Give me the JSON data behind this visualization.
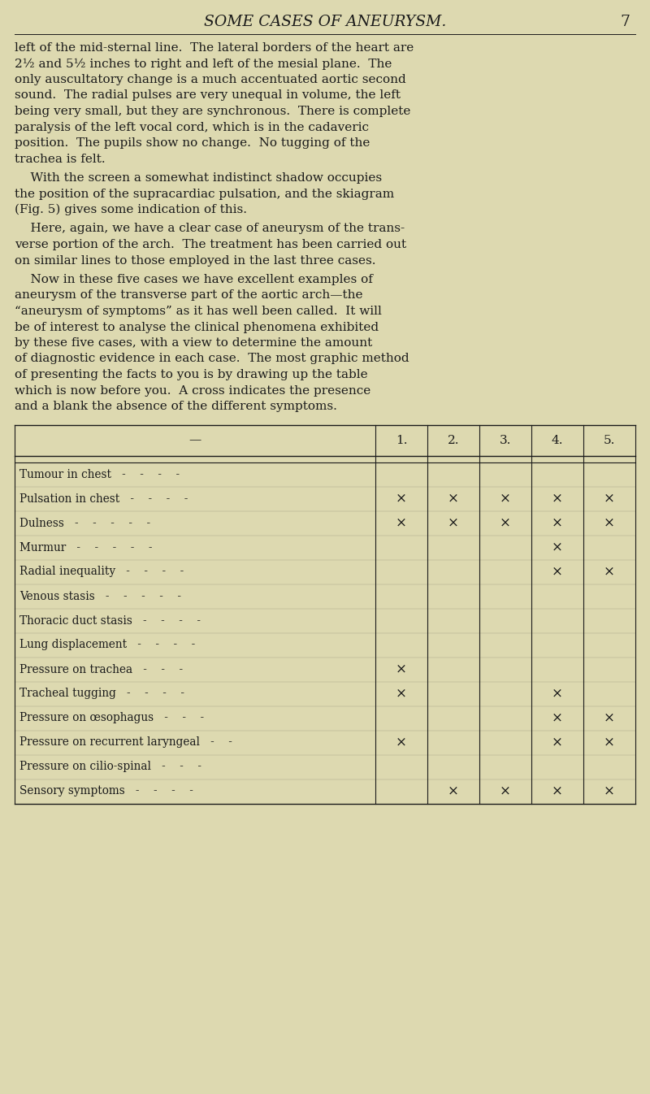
{
  "bg_color": "#ddd9b0",
  "title": "SOME CASES OF ANEURYSM.",
  "page_num": "7",
  "title_fontsize": 13.5,
  "body_fontsize": 11.0,
  "small_fontsize": 9.8,
  "text_color": "#1a1a1a",
  "table_rows": [
    {
      "label": "Tumour in chest   -    -    -    -",
      "marks": [
        false,
        false,
        false,
        false,
        false
      ]
    },
    {
      "label": "Pulsation in chest   -    -    -    -",
      "marks": [
        true,
        true,
        true,
        true,
        true
      ]
    },
    {
      "label": "Dulness   -    -    -    -    -",
      "marks": [
        true,
        true,
        true,
        true,
        true
      ]
    },
    {
      "label": "Murmur   -    -    -    -    -",
      "marks": [
        false,
        false,
        false,
        true,
        false
      ]
    },
    {
      "label": "Radial inequality   -    -    -    -",
      "marks": [
        false,
        false,
        false,
        true,
        true
      ]
    },
    {
      "label": "Venous stasis   -    -    -    -    -",
      "marks": [
        false,
        false,
        false,
        false,
        false
      ]
    },
    {
      "label": "Thoracic duct stasis   -    -    -    -",
      "marks": [
        false,
        false,
        false,
        false,
        false
      ]
    },
    {
      "label": "Lung displacement   -    -    -    -",
      "marks": [
        false,
        false,
        false,
        false,
        false
      ]
    },
    {
      "label": "Pressure on trachea   -    -    -",
      "marks": [
        true,
        false,
        false,
        false,
        false
      ]
    },
    {
      "label": "Tracheal tugging   -    -    -    -",
      "marks": [
        true,
        false,
        false,
        true,
        false
      ]
    },
    {
      "label": "Pressure on œsophagus   -    -    -",
      "marks": [
        false,
        false,
        false,
        true,
        true
      ]
    },
    {
      "label": "Pressure on recurrent laryngeal   -    -",
      "marks": [
        true,
        false,
        false,
        true,
        true
      ]
    },
    {
      "label": "Pressure on cilio-spinal   -    -    -",
      "marks": [
        false,
        false,
        false,
        false,
        false
      ]
    },
    {
      "label": "Sensory symptoms   -    -    -    -",
      "marks": [
        false,
        true,
        true,
        true,
        true
      ]
    }
  ]
}
